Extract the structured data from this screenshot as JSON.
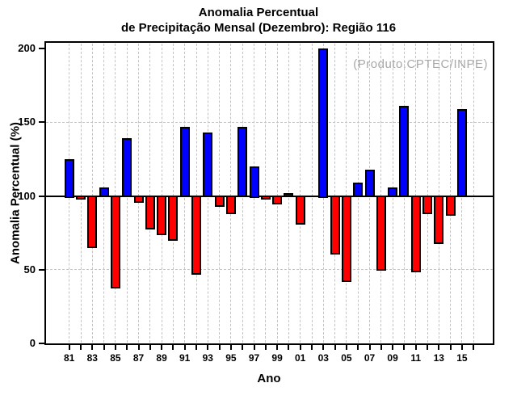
{
  "chart_data": {
    "type": "bar",
    "title_line1": "Anomalia Percentual",
    "title_line2": "de Precipitação Mensal (Dezembro): Região 116",
    "annotation": "(Produto:CPTEC/INPE)",
    "xlabel": "Ano",
    "ylabel": "Anomalia Percentual (%)",
    "ylim": [
      0,
      200
    ],
    "y_ticks": [
      0,
      50,
      100,
      150,
      200
    ],
    "baseline": 100,
    "dashed_gridlines": [
      50,
      150
    ],
    "grid": true,
    "x_tick_labels": [
      "81",
      "83",
      "85",
      "87",
      "89",
      "91",
      "93",
      "95",
      "97",
      "99",
      "01",
      "03",
      "05",
      "07",
      "09",
      "11",
      "13",
      "15"
    ],
    "x_extra_ticks": 1,
    "years": [
      "81",
      "82",
      "83",
      "84",
      "85",
      "86",
      "87",
      "88",
      "89",
      "90",
      "91",
      "92",
      "93",
      "94",
      "95",
      "96",
      "97",
      "98",
      "99",
      "00",
      "01",
      "02",
      "03",
      "04",
      "05",
      "06",
      "07",
      "08",
      "09",
      "10",
      "11",
      "12",
      "13",
      "14",
      "15"
    ],
    "values": [
      125,
      98,
      65,
      106,
      38,
      139,
      96,
      78,
      74,
      70,
      147,
      47,
      143,
      93,
      88,
      147,
      120,
      98,
      95,
      102,
      81,
      100,
      200,
      61,
      42,
      109,
      118,
      50,
      106,
      161,
      49,
      88,
      68,
      87,
      159
    ],
    "colors": {
      "above_baseline": "#0000ff",
      "below_baseline": "#ff0000",
      "bar_outline": "#000000",
      "grid": "#c3c3c3",
      "annotation_text": "#a8a8a8"
    }
  }
}
